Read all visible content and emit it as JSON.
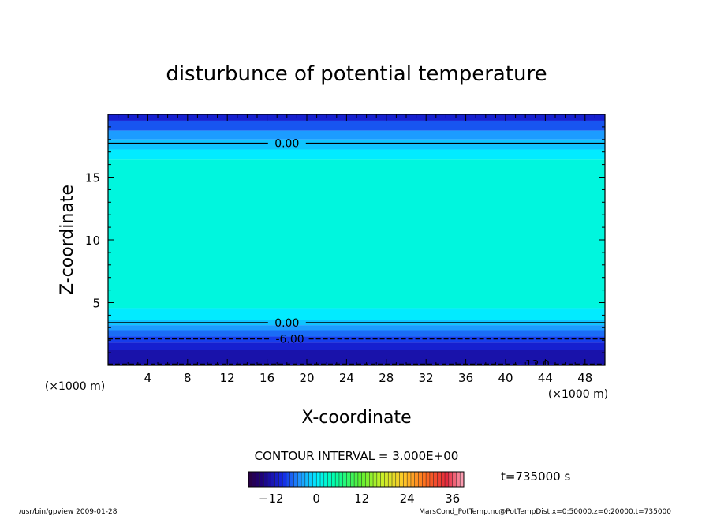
{
  "chart_data": {
    "type": "heatmap",
    "title": "disturbunce of potential temperature",
    "xlabel": "X-coordinate",
    "ylabel": "Z-coordinate",
    "x_unit": "(×1000 m)",
    "z_unit": "(×1000 m)",
    "xlim": [
      0,
      50
    ],
    "ylim": [
      0,
      20
    ],
    "x_ticks": [
      4,
      8,
      12,
      16,
      20,
      24,
      28,
      32,
      36,
      40,
      44,
      48
    ],
    "x_tick_labels": [
      "4",
      "8",
      "12",
      "16",
      "20",
      "24",
      "28",
      "32",
      "36",
      "40",
      "44",
      "48"
    ],
    "y_ticks": [
      5,
      10,
      15
    ],
    "y_tick_labels": [
      "5",
      "10",
      "15"
    ],
    "field_bands": [
      {
        "z0": 19.5,
        "z1": 20,
        "value": -10
      },
      {
        "z0": 18.7,
        "z1": 19.5,
        "value": -7
      },
      {
        "z0": 18.0,
        "z1": 18.7,
        "value": -4
      },
      {
        "z0": 17.2,
        "z1": 18.0,
        "value": -2
      },
      {
        "z0": 16.4,
        "z1": 17.2,
        "value": 0
      },
      {
        "z0": 4.5,
        "z1": 16.4,
        "value": 2
      },
      {
        "z0": 3.6,
        "z1": 4.5,
        "value": 0
      },
      {
        "z0": 3.2,
        "z1": 3.6,
        "value": -2
      },
      {
        "z0": 2.8,
        "z1": 3.2,
        "value": -4
      },
      {
        "z0": 2.3,
        "z1": 2.8,
        "value": -6
      },
      {
        "z0": 1.8,
        "z1": 2.3,
        "value": -8
      },
      {
        "z0": 1.2,
        "z1": 1.8,
        "value": -10
      },
      {
        "z0": 0,
        "z1": 1.2,
        "value": -12
      }
    ],
    "contours": [
      {
        "z": 17.7,
        "value": 0,
        "label": "0.00",
        "label_x": 18.0
      },
      {
        "z": 3.4,
        "value": 0,
        "label": "0.00",
        "label_x": 18.0
      },
      {
        "z": 2.1,
        "value": -6,
        "label": "-6.00",
        "label_x": 18.3
      },
      {
        "z": 0.1,
        "value": -12,
        "label": "-12.0",
        "label_x": 43.0
      }
    ],
    "contour_interval_label": "CONTOUR INTERVAL = 3.000E+00",
    "time_label": "t=735000 s",
    "colorbar": {
      "min": -18,
      "max": 39,
      "ticks": [
        -12,
        0,
        12,
        24,
        36
      ],
      "tick_labels": [
        "−12",
        "0",
        "12",
        "24",
        "36"
      ]
    }
  },
  "footer": {
    "left": "/usr/bin/gpview   2009-01-28",
    "right": "MarsCond_PotTemp.nc@PotTempDist,x=0:50000,z=0:20000,t=735000"
  }
}
